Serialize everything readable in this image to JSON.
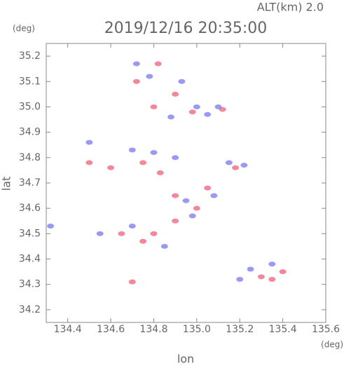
{
  "chart_data": {
    "type": "scatter",
    "title": "2019/12/16 20:35:00",
    "subtitle": "ALT(km)  2.0",
    "x_label": "lon",
    "y_label": "lat",
    "x_unit": "(deg)",
    "y_unit": "(deg)",
    "xlim": [
      134.3,
      135.6
    ],
    "xticks": [
      134.4,
      134.6,
      134.8,
      {
        "value": 135,
        "label": "135.0"
      },
      135.2,
      135.4,
      135.6
    ],
    "ylim": [
      34.15,
      35.25
    ],
    "yticks": [
      34.2,
      34.3,
      34.4,
      34.5,
      34.6,
      34.7,
      34.8,
      34.9,
      {
        "value": 35,
        "label": "35.0"
      },
      35.1,
      35.2
    ],
    "series": [
      {
        "color": "#f0607a",
        "x": [
          134.82,
          134.72,
          134.9,
          134.8,
          135.12,
          134.98,
          134.5,
          134.6,
          134.75,
          134.83,
          135.18,
          134.9,
          135.0,
          135.05,
          134.8,
          134.75,
          134.9,
          135.3,
          135.35,
          135.4,
          134.7,
          134.65
        ],
        "y": [
          35.17,
          35.1,
          35.05,
          35.0,
          34.99,
          34.98,
          34.78,
          34.76,
          34.78,
          34.74,
          34.76,
          34.65,
          34.6,
          34.68,
          34.5,
          34.47,
          34.55,
          34.33,
          34.32,
          34.35,
          34.31,
          34.5
        ]
      },
      {
        "color": "#7878f0",
        "x": [
          134.72,
          134.78,
          134.93,
          134.88,
          135.0,
          135.05,
          135.1,
          134.5,
          134.7,
          134.8,
          134.9,
          135.15,
          135.22,
          134.95,
          135.08,
          134.98,
          134.7,
          134.85,
          134.55,
          135.25,
          135.2,
          135.35,
          134.32
        ],
        "y": [
          35.17,
          35.12,
          35.1,
          34.96,
          35.0,
          34.97,
          35.0,
          34.86,
          34.83,
          34.82,
          34.8,
          34.78,
          34.77,
          34.63,
          34.65,
          34.57,
          34.53,
          34.45,
          34.5,
          34.36,
          34.32,
          34.38,
          34.53
        ]
      }
    ]
  }
}
